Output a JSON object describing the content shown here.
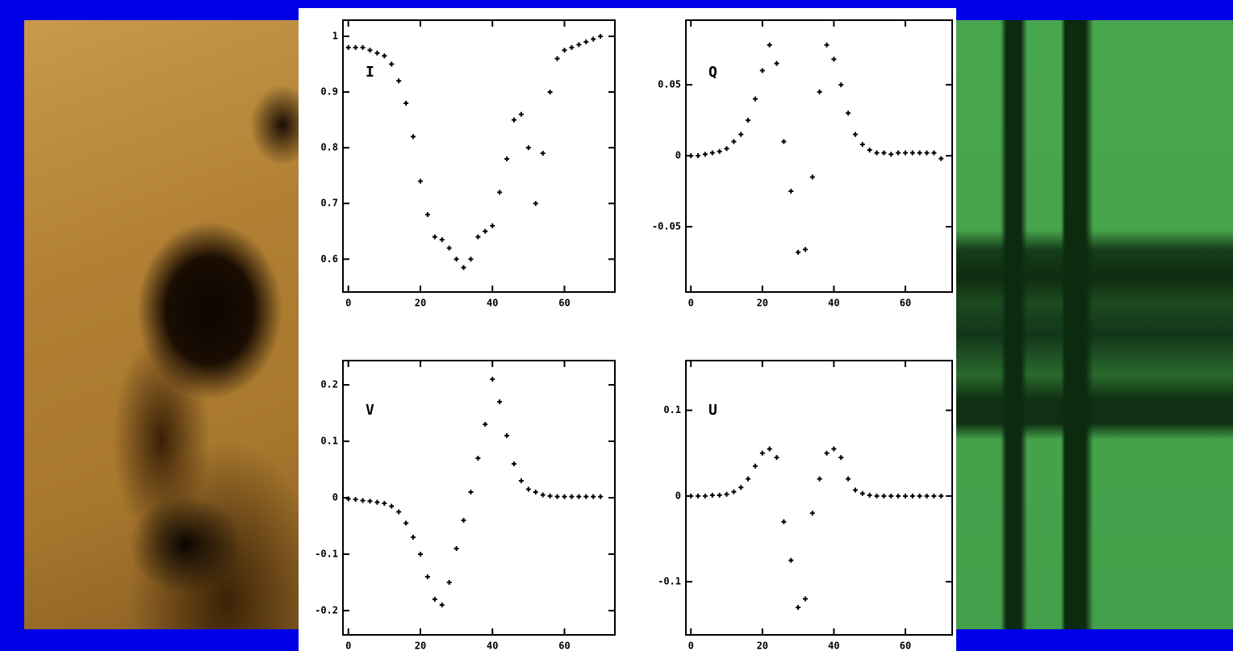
{
  "chart_data": [
    {
      "type": "scatter",
      "annotation": "I",
      "color": "#000000",
      "x": [
        0,
        2,
        4,
        6,
        8,
        10,
        12,
        14,
        16,
        18,
        20,
        22,
        24,
        26,
        28,
        30,
        32,
        34,
        36,
        38,
        40,
        42,
        44,
        46,
        48,
        50,
        52,
        54,
        56,
        58,
        60,
        62,
        64,
        66,
        68,
        70
      ],
      "values": [
        0.98,
        0.98,
        0.98,
        0.975,
        0.97,
        0.965,
        0.95,
        0.92,
        0.88,
        0.82,
        0.74,
        0.68,
        0.64,
        0.635,
        0.62,
        0.6,
        0.585,
        0.6,
        0.64,
        0.65,
        0.66,
        0.72,
        0.78,
        0.85,
        0.86,
        0.8,
        0.7,
        0.79,
        0.9,
        0.96,
        0.975,
        0.98,
        0.985,
        0.99,
        0.995,
        1.0
      ],
      "xlim": [
        -1.5,
        74
      ],
      "ylim": [
        0.541,
        1.029
      ],
      "xticks": [
        0,
        20,
        40,
        60
      ],
      "yticks": [
        0.6,
        0.7,
        0.8,
        0.9,
        1
      ]
    },
    {
      "type": "scatter",
      "annotation": "Q",
      "color": "#000000",
      "x": [
        0,
        2,
        4,
        6,
        8,
        10,
        12,
        14,
        16,
        18,
        20,
        22,
        24,
        26,
        28,
        30,
        32,
        34,
        36,
        38,
        40,
        42,
        44,
        46,
        48,
        50,
        52,
        54,
        56,
        58,
        60,
        62,
        64,
        66,
        68,
        70
      ],
      "values": [
        0,
        0,
        0.001,
        0.002,
        0.003,
        0.005,
        0.01,
        0.015,
        0.025,
        0.04,
        0.06,
        0.078,
        0.065,
        0.01,
        -0.025,
        -0.068,
        -0.066,
        -0.015,
        0.045,
        0.078,
        0.068,
        0.05,
        0.03,
        0.015,
        0.008,
        0.004,
        0.002,
        0.002,
        0.001,
        0.002,
        0.002,
        0.002,
        0.002,
        0.002,
        0.002,
        -0.002
      ],
      "xlim": [
        -1.4,
        73.1
      ],
      "ylim": [
        -0.096,
        0.0955
      ],
      "xticks": [
        0,
        20,
        40,
        60
      ],
      "yticks": [
        -0.05,
        0,
        0.05
      ]
    },
    {
      "type": "scatter",
      "annotation": "V",
      "color": "#000000",
      "x": [
        0,
        2,
        4,
        6,
        8,
        10,
        12,
        14,
        16,
        18,
        20,
        22,
        24,
        26,
        28,
        30,
        32,
        34,
        36,
        38,
        40,
        42,
        44,
        46,
        48,
        50,
        52,
        54,
        56,
        58,
        60,
        62,
        64,
        66,
        68,
        70
      ],
      "values": [
        -0.002,
        -0.003,
        -0.005,
        -0.006,
        -0.008,
        -0.01,
        -0.015,
        -0.025,
        -0.045,
        -0.07,
        -0.1,
        -0.14,
        -0.18,
        -0.19,
        -0.15,
        -0.09,
        -0.04,
        0.01,
        0.07,
        0.13,
        0.21,
        0.17,
        0.11,
        0.06,
        0.03,
        0.015,
        0.01,
        0.005,
        0.003,
        0.002,
        0.002,
        0.002,
        0.002,
        0.002,
        0.002,
        0.002
      ],
      "xlim": [
        -1.5,
        74
      ],
      "ylim": [
        -0.243,
        0.243
      ],
      "xticks": [
        0,
        20,
        40,
        60
      ],
      "yticks": [
        -0.2,
        -0.1,
        0,
        0.1,
        0.2
      ]
    },
    {
      "type": "scatter",
      "annotation": "U",
      "color": "#000000",
      "x": [
        0,
        2,
        4,
        6,
        8,
        10,
        12,
        14,
        16,
        18,
        20,
        22,
        24,
        26,
        28,
        30,
        32,
        34,
        36,
        38,
        40,
        42,
        44,
        46,
        48,
        50,
        52,
        54,
        56,
        58,
        60,
        62,
        64,
        66,
        68,
        70
      ],
      "values": [
        0,
        0,
        0,
        0.001,
        0.001,
        0.002,
        0.005,
        0.01,
        0.02,
        0.035,
        0.05,
        0.055,
        0.045,
        -0.03,
        -0.075,
        -0.13,
        -0.12,
        -0.02,
        0.02,
        0.05,
        0.055,
        0.045,
        0.02,
        0.007,
        0.003,
        0.001,
        0,
        0,
        0,
        0,
        0,
        0,
        0,
        0,
        0,
        0
      ],
      "xlim": [
        -1.4,
        73.1
      ],
      "ylim": [
        -0.162,
        0.158
      ],
      "xticks": [
        0,
        20,
        40,
        60
      ],
      "yticks": [
        -0.1,
        0,
        0.1
      ]
    }
  ]
}
